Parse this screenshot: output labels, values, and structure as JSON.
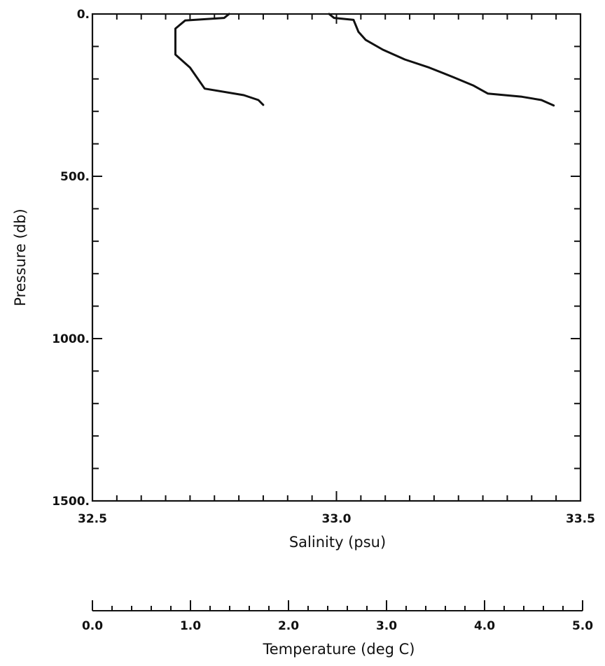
{
  "chart_data": {
    "type": "line",
    "ylabel": "Pressure (db)",
    "xlabel": "Salinity (psu)",
    "x2label": "Temperature (deg C)",
    "ylim": [
      1500,
      0
    ],
    "xlim": [
      32.5,
      33.5
    ],
    "x2lim": [
      0.0,
      5.0
    ],
    "y_ticks": [
      {
        "value": 0,
        "label": "0."
      },
      {
        "value": 500,
        "label": "500."
      },
      {
        "value": 1000,
        "label": "1000."
      },
      {
        "value": 1500,
        "label": "1500."
      }
    ],
    "x_ticks": [
      {
        "value": 32.5,
        "label": "32.5"
      },
      {
        "value": 33.0,
        "label": "33.0"
      },
      {
        "value": 33.5,
        "label": "33.5"
      }
    ],
    "x2_ticks": [
      {
        "value": 0.0,
        "label": "0.0"
      },
      {
        "value": 1.0,
        "label": "1.0"
      },
      {
        "value": 2.0,
        "label": "2.0"
      },
      {
        "value": 3.0,
        "label": "3.0"
      },
      {
        "value": 4.0,
        "label": "4.0"
      },
      {
        "value": 5.0,
        "label": "5.0"
      }
    ],
    "series": [
      {
        "axis": "salinity",
        "points": [
          [
            32.985,
            0
          ],
          [
            32.995,
            12
          ],
          [
            33.035,
            18
          ],
          [
            33.045,
            55
          ],
          [
            33.06,
            80
          ],
          [
            33.095,
            110
          ],
          [
            33.14,
            140
          ],
          [
            33.19,
            165
          ],
          [
            33.24,
            195
          ],
          [
            33.28,
            220
          ],
          [
            33.31,
            245
          ],
          [
            33.38,
            255
          ],
          [
            33.42,
            265
          ],
          [
            33.445,
            282
          ]
        ]
      },
      {
        "axis": "temperature",
        "points": [
          [
            1.4,
            0
          ],
          [
            1.35,
            12
          ],
          [
            0.95,
            20
          ],
          [
            0.85,
            45
          ],
          [
            0.85,
            125
          ],
          [
            1.0,
            165
          ],
          [
            1.15,
            230
          ],
          [
            1.55,
            250
          ],
          [
            1.7,
            265
          ],
          [
            1.75,
            280
          ]
        ]
      }
    ]
  }
}
